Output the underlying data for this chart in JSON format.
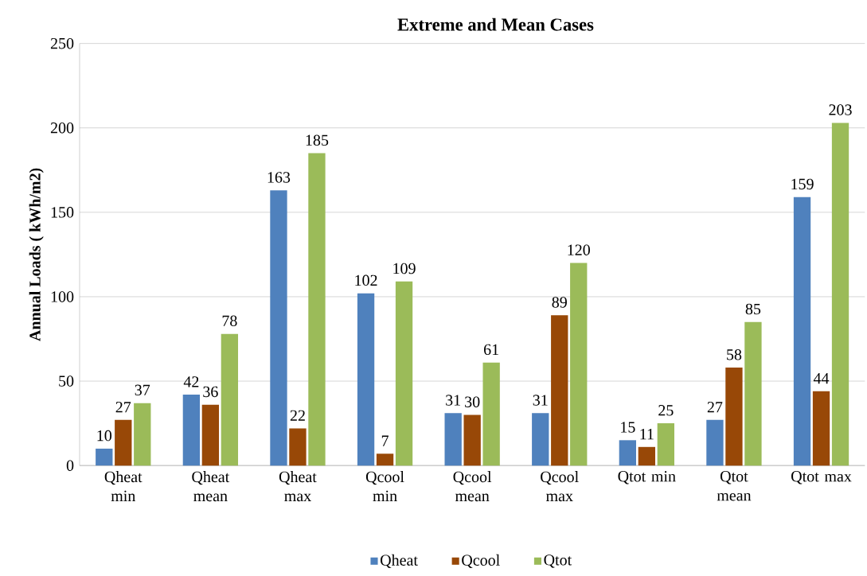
{
  "chart_data": {
    "type": "bar",
    "title": "Extreme and Mean Cases",
    "ylabel": "Annual  Loads ( kWh/m2)",
    "categories": [
      "Qheat min",
      "Qheat mean",
      "Qheat max",
      "Qcool min",
      "Qcool mean",
      "Qcool max",
      "Qtot min",
      "Qtot mean",
      "Qtot max"
    ],
    "series": [
      {
        "name": "Qheat",
        "color": "#4f81bd",
        "values": [
          10,
          42,
          163,
          102,
          31,
          31,
          15,
          27,
          159
        ]
      },
      {
        "name": "Qcool",
        "color": "#984807",
        "values": [
          27,
          36,
          22,
          7,
          30,
          89,
          11,
          58,
          44
        ]
      },
      {
        "name": "Qtot",
        "color": "#9bbb59",
        "values": [
          37,
          78,
          185,
          109,
          61,
          120,
          25,
          85,
          203
        ]
      }
    ],
    "ylim": [
      0,
      250
    ],
    "yticks": [
      0,
      50,
      100,
      150,
      200,
      250
    ],
    "grid": "y",
    "legend": "bottom",
    "data_labels": true
  }
}
